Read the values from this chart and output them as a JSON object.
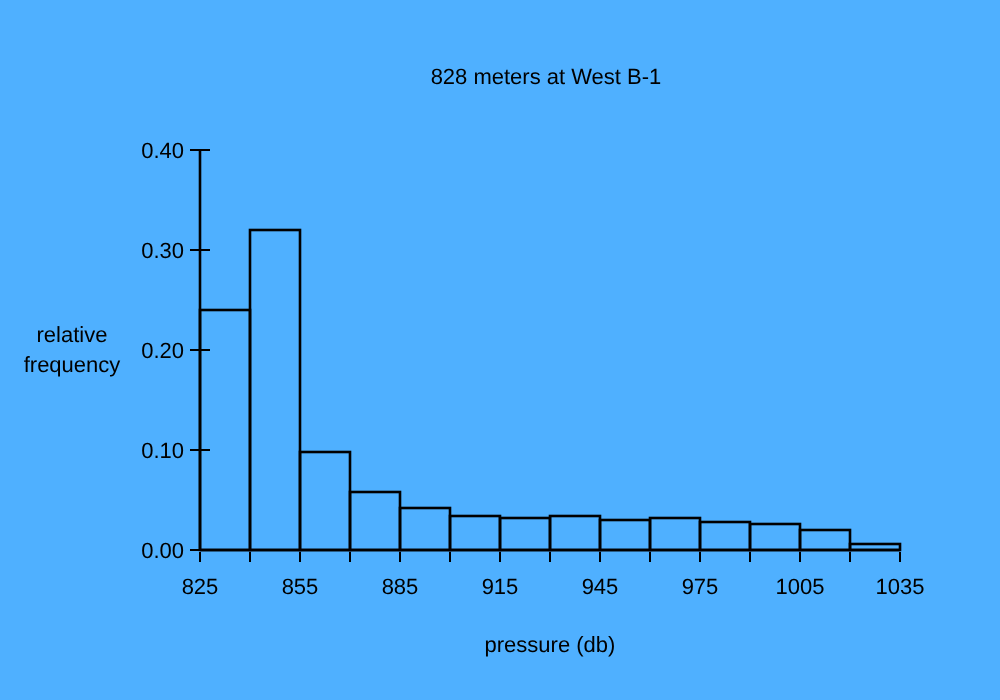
{
  "chart_data": {
    "type": "histogram",
    "title": "828 meters at West B-1",
    "xlabel": "pressure (db)",
    "ylabel": "relative frequency",
    "bins": [
      825,
      840,
      855,
      870,
      885,
      900,
      915,
      930,
      945,
      960,
      975,
      990,
      1005,
      1020,
      1035
    ],
    "values": [
      0.24,
      0.32,
      0.098,
      0.058,
      0.042,
      0.034,
      0.032,
      0.034,
      0.03,
      0.032,
      0.028,
      0.026,
      0.02,
      0.006
    ],
    "color": "#000000",
    "xlim": [
      825,
      1035
    ],
    "xticks": [
      825,
      {
        "value": 840,
        "label": null
      },
      855,
      {
        "value": 870,
        "label": null
      },
      885,
      {
        "value": 900,
        "label": null
      },
      915,
      {
        "value": 930,
        "label": null
      },
      945,
      {
        "value": 960,
        "label": null
      },
      975,
      {
        "value": 990,
        "label": null
      },
      1005,
      {
        "value": 1020,
        "label": null
      },
      1035
    ],
    "ylim": [
      0,
      0.4
    ],
    "yticks": [
      {
        "value": 0,
        "label": "0.00"
      },
      {
        "value": 0.1,
        "label": "0.10"
      },
      {
        "value": 0.2,
        "label": "0.20"
      },
      {
        "value": 0.3,
        "label": "0.30"
      },
      {
        "value": 0.4,
        "label": "0.40"
      }
    ],
    "grid": false
  }
}
